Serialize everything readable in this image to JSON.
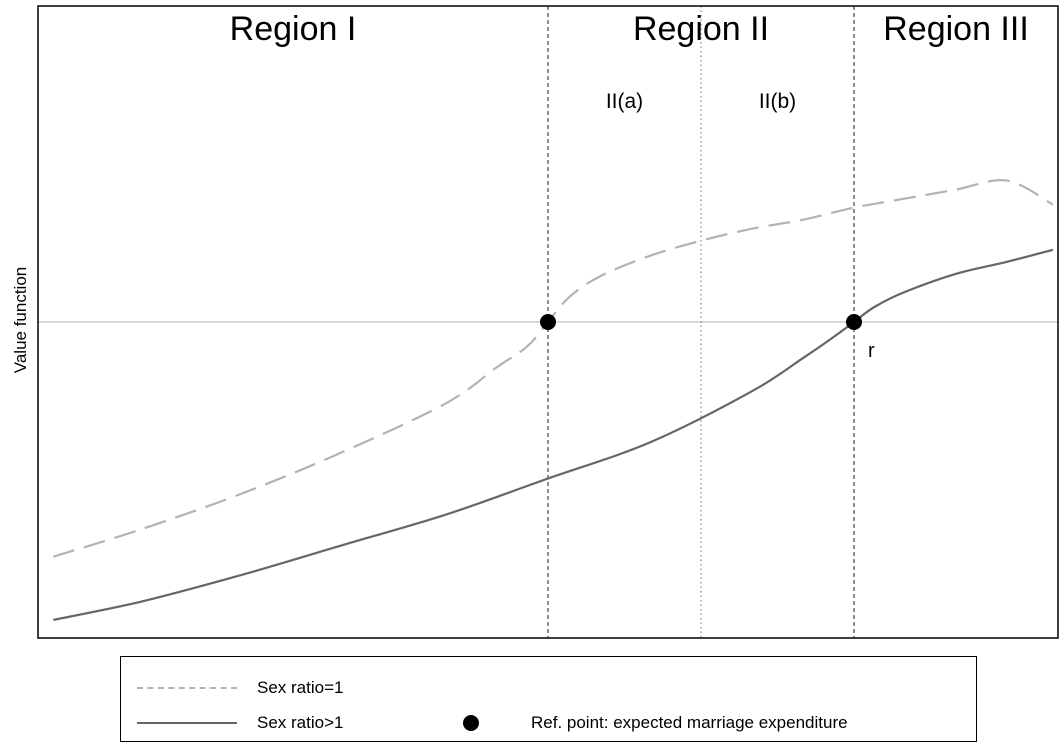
{
  "chart_data": {
    "type": "line",
    "title": "",
    "xlabel": "",
    "ylabel": "Value function",
    "x_ticks": "none",
    "y_ticks": "none",
    "xlim": [
      0,
      10
    ],
    "ylim": [
      -1.05,
      1.05
    ],
    "grid": false,
    "series": [
      {
        "name": "Sex ratio=1",
        "style": "dashed",
        "color": "#b3b3b3",
        "x": [
          0.15,
          1.0,
          2.0,
          3.0,
          4.0,
          4.5,
          4.8,
          5.0,
          5.2,
          5.5,
          6.0,
          6.5,
          7.0,
          7.5,
          8.0,
          8.5,
          9.0,
          9.5,
          9.95
        ],
        "y": [
          -0.78,
          -0.69,
          -0.57,
          -0.43,
          -0.27,
          -0.15,
          -0.08,
          0.0,
          0.08,
          0.15,
          0.22,
          0.27,
          0.31,
          0.34,
          0.38,
          0.41,
          0.44,
          0.47,
          0.39
        ]
      },
      {
        "name": "Sex ratio>1",
        "style": "solid",
        "color": "#666666",
        "x": [
          0.15,
          1.0,
          2.0,
          3.0,
          4.0,
          5.0,
          6.0,
          7.0,
          7.5,
          7.8,
          8.0,
          8.2,
          8.5,
          9.0,
          9.5,
          9.95
        ],
        "y": [
          -0.99,
          -0.93,
          -0.84,
          -0.74,
          -0.64,
          -0.52,
          -0.4,
          -0.23,
          -0.12,
          -0.05,
          0.0,
          0.05,
          0.1,
          0.16,
          0.2,
          0.24
        ]
      }
    ],
    "reference_points": [
      {
        "x": 5.0,
        "y": 0.0
      },
      {
        "x": 8.0,
        "y": 0.0
      }
    ],
    "reference_point_label": "r",
    "horizontal_line": {
      "y": 0.0,
      "color": "#d9d9d9"
    },
    "vertical_lines": [
      {
        "x": 5.0,
        "style": "dashed"
      },
      {
        "x": 6.5,
        "style": "dotted"
      },
      {
        "x": 8.0,
        "style": "dashed"
      }
    ],
    "region_labels": [
      {
        "text": "Region I",
        "x": 2.5
      },
      {
        "text": "Region II",
        "x": 6.5
      },
      {
        "text": "Region III",
        "x": 9.0
      }
    ],
    "subregion_labels": [
      {
        "text": "II(a)",
        "x": 5.75
      },
      {
        "text": "II(b)",
        "x": 7.25
      }
    ]
  },
  "legend": {
    "position": "bottom",
    "items": [
      {
        "label": "Sex ratio=1",
        "style": "dashed"
      },
      {
        "label": "Sex ratio>1",
        "style": "solid"
      },
      {
        "label": "Ref. point: expected marriage expenditure",
        "style": "point"
      }
    ]
  }
}
